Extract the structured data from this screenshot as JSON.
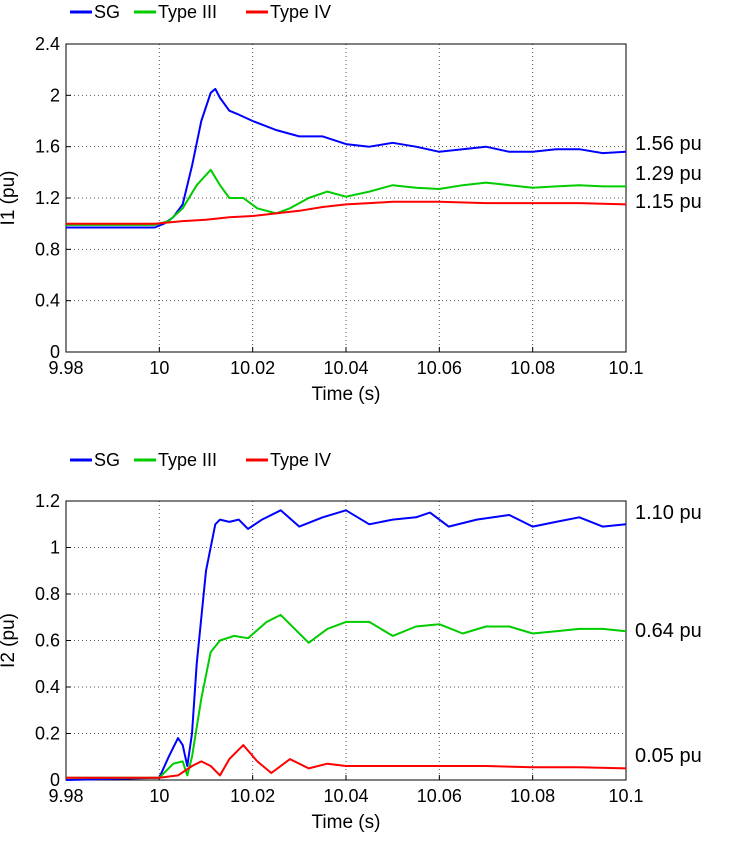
{
  "chart_data": [
    {
      "type": "line",
      "title": "",
      "xlabel": "Time (s)",
      "ylabel": "I1 (pu)",
      "xlim": [
        9.98,
        10.1
      ],
      "ylim": [
        0,
        2.4
      ],
      "x_ticks": [
        "9.98",
        "10",
        "10.02",
        "10.04",
        "10.06",
        "10.08",
        "10.1"
      ],
      "y_ticks": [
        "0",
        "0.4",
        "0.8",
        "1.2",
        "1.6",
        "2",
        "2.4"
      ],
      "grid": true,
      "legend_position": "top-left",
      "series": [
        {
          "name": "SG",
          "color": "#0000ff",
          "x": [
            9.98,
            9.999,
            10.001,
            10.003,
            10.005,
            10.007,
            10.009,
            10.011,
            10.012,
            10.013,
            10.015,
            10.017,
            10.02,
            10.025,
            10.03,
            10.035,
            10.04,
            10.045,
            10.05,
            10.055,
            10.06,
            10.065,
            10.07,
            10.075,
            10.08,
            10.085,
            10.09,
            10.095,
            10.1
          ],
          "y": [
            0.97,
            0.97,
            1.0,
            1.05,
            1.15,
            1.45,
            1.8,
            2.02,
            2.05,
            1.98,
            1.88,
            1.85,
            1.8,
            1.73,
            1.68,
            1.68,
            1.62,
            1.6,
            1.63,
            1.6,
            1.56,
            1.58,
            1.6,
            1.56,
            1.56,
            1.58,
            1.58,
            1.55,
            1.56
          ]
        },
        {
          "name": "Type III",
          "color": "#00cc00",
          "x": [
            9.98,
            9.999,
            10.002,
            10.005,
            10.008,
            10.011,
            10.013,
            10.015,
            10.018,
            10.021,
            10.025,
            10.028,
            10.032,
            10.036,
            10.04,
            10.045,
            10.05,
            10.055,
            10.06,
            10.065,
            10.07,
            10.075,
            10.08,
            10.085,
            10.09,
            10.095,
            10.1
          ],
          "y": [
            0.99,
            0.99,
            1.02,
            1.12,
            1.3,
            1.42,
            1.3,
            1.2,
            1.2,
            1.12,
            1.08,
            1.12,
            1.2,
            1.25,
            1.21,
            1.25,
            1.3,
            1.28,
            1.27,
            1.3,
            1.32,
            1.3,
            1.28,
            1.29,
            1.3,
            1.29,
            1.29
          ]
        },
        {
          "name": "Type IV",
          "color": "#ff0000",
          "x": [
            9.98,
            9.999,
            10.005,
            10.01,
            10.015,
            10.02,
            10.025,
            10.03,
            10.035,
            10.04,
            10.045,
            10.05,
            10.06,
            10.07,
            10.08,
            10.09,
            10.1
          ],
          "y": [
            1.0,
            1.0,
            1.02,
            1.03,
            1.05,
            1.06,
            1.08,
            1.1,
            1.13,
            1.15,
            1.16,
            1.17,
            1.17,
            1.16,
            1.16,
            1.16,
            1.15
          ]
        }
      ],
      "annotations": [
        "1.56 pu",
        "1.29 pu",
        "1.15 pu"
      ]
    },
    {
      "type": "line",
      "title": "",
      "xlabel": "Time (s)",
      "ylabel": "I2 (pu)",
      "xlim": [
        9.98,
        10.1
      ],
      "ylim": [
        0,
        1.2
      ],
      "x_ticks": [
        "9.98",
        "10",
        "10.02",
        "10.04",
        "10.06",
        "10.08",
        "10.1"
      ],
      "y_ticks": [
        "0",
        "0.2",
        "0.4",
        "0.6",
        "0.8",
        "1",
        "1.2"
      ],
      "grid": true,
      "legend_position": "top-left",
      "series": [
        {
          "name": "SG",
          "color": "#0000ff",
          "x": [
            9.98,
            10.0,
            10.002,
            10.004,
            10.005,
            10.006,
            10.007,
            10.008,
            10.01,
            10.012,
            10.013,
            10.015,
            10.017,
            10.019,
            10.022,
            10.026,
            10.03,
            10.035,
            10.04,
            10.045,
            10.05,
            10.055,
            10.058,
            10.062,
            10.068,
            10.075,
            10.08,
            10.085,
            10.09,
            10.095,
            10.1
          ],
          "y": [
            0.0,
            0.01,
            0.1,
            0.18,
            0.15,
            0.06,
            0.2,
            0.5,
            0.9,
            1.1,
            1.12,
            1.11,
            1.12,
            1.08,
            1.12,
            1.16,
            1.09,
            1.13,
            1.16,
            1.1,
            1.12,
            1.13,
            1.15,
            1.09,
            1.12,
            1.14,
            1.09,
            1.11,
            1.13,
            1.09,
            1.1
          ]
        },
        {
          "name": "Type III",
          "color": "#00cc00",
          "x": [
            9.98,
            10.0,
            10.003,
            10.005,
            10.006,
            10.007,
            10.009,
            10.011,
            10.013,
            10.016,
            10.019,
            10.023,
            10.026,
            10.029,
            10.032,
            10.036,
            10.04,
            10.045,
            10.05,
            10.055,
            10.06,
            10.065,
            10.07,
            10.075,
            10.08,
            10.085,
            10.09,
            10.095,
            10.1
          ],
          "y": [
            0.01,
            0.01,
            0.07,
            0.08,
            0.02,
            0.1,
            0.35,
            0.55,
            0.6,
            0.62,
            0.61,
            0.68,
            0.71,
            0.65,
            0.59,
            0.65,
            0.68,
            0.68,
            0.62,
            0.66,
            0.67,
            0.63,
            0.66,
            0.66,
            0.63,
            0.64,
            0.65,
            0.65,
            0.64
          ]
        },
        {
          "name": "Type IV",
          "color": "#ff0000",
          "x": [
            9.98,
            10.0,
            10.004,
            10.007,
            10.009,
            10.011,
            10.013,
            10.015,
            10.018,
            10.021,
            10.024,
            10.028,
            10.032,
            10.036,
            10.04,
            10.05,
            10.06,
            10.07,
            10.08,
            10.09,
            10.1
          ],
          "y": [
            0.01,
            0.01,
            0.02,
            0.06,
            0.08,
            0.06,
            0.02,
            0.09,
            0.15,
            0.08,
            0.03,
            0.09,
            0.05,
            0.07,
            0.06,
            0.06,
            0.06,
            0.06,
            0.055,
            0.055,
            0.05
          ]
        }
      ],
      "annotations": [
        "1.10 pu",
        "0.64 pu",
        "0.05 pu"
      ]
    }
  ]
}
